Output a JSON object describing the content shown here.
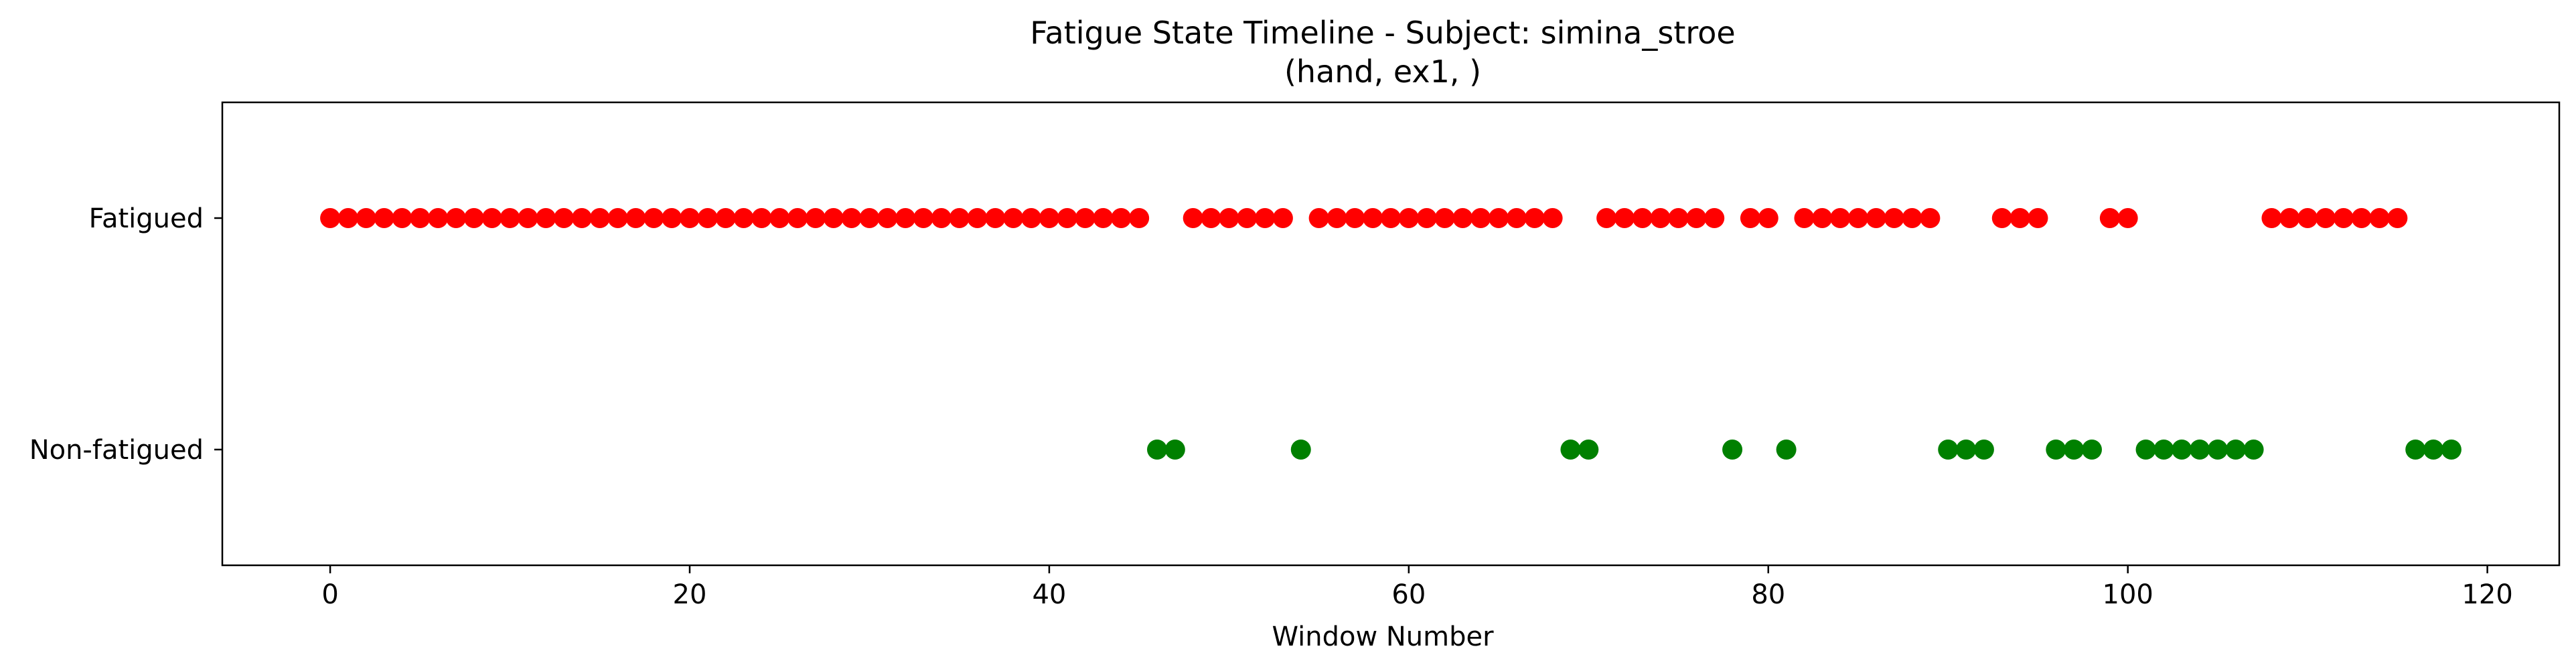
{
  "chart_data": {
    "type": "scatter",
    "title": "Fatigue State Timeline - Subject: simina_stroe",
    "subtitle": "(hand, ex1, )",
    "xlabel": "Window Number",
    "ylabel": "",
    "xlim": [
      -6,
      124
    ],
    "ylim": [
      -0.5,
      1.5
    ],
    "xticks": [
      0,
      20,
      40,
      60,
      80,
      100,
      120
    ],
    "yticks": [
      {
        "value": 1,
        "label": "Fatigued"
      },
      {
        "value": 0,
        "label": "Non-fatigued"
      }
    ],
    "grid": false,
    "legend": "none",
    "series": [
      {
        "color": "#ff0000",
        "y": 1,
        "x": [
          0,
          1,
          2,
          3,
          4,
          5,
          6,
          7,
          8,
          9,
          10,
          11,
          12,
          13,
          14,
          15,
          16,
          17,
          18,
          19,
          20,
          21,
          22,
          23,
          24,
          25,
          26,
          27,
          28,
          29,
          30,
          31,
          32,
          33,
          34,
          35,
          36,
          37,
          38,
          39,
          40,
          41,
          42,
          43,
          44,
          45,
          48,
          49,
          50,
          51,
          52,
          53,
          55,
          56,
          57,
          58,
          59,
          60,
          61,
          62,
          63,
          64,
          65,
          66,
          67,
          68,
          71,
          72,
          73,
          74,
          75,
          76,
          77,
          79,
          80,
          82,
          83,
          84,
          85,
          86,
          87,
          88,
          89,
          93,
          94,
          95,
          99,
          100,
          108,
          109,
          110,
          111,
          112,
          113,
          114,
          115
        ]
      },
      {
        "color": "#008000",
        "y": 0,
        "x": [
          46,
          47,
          54,
          69,
          70,
          78,
          81,
          90,
          91,
          92,
          96,
          97,
          98,
          101,
          102,
          103,
          104,
          105,
          106,
          107,
          116,
          117,
          118
        ]
      }
    ]
  }
}
